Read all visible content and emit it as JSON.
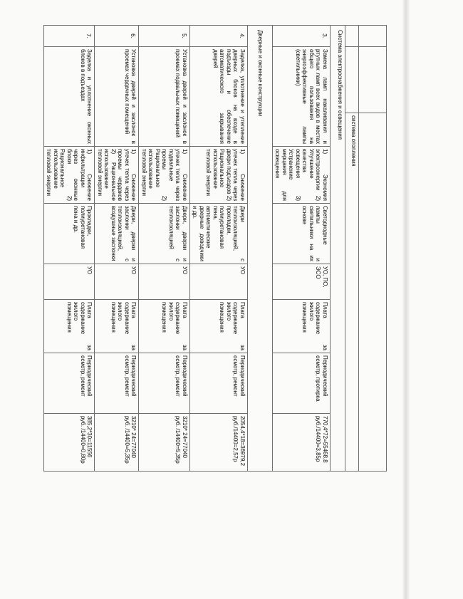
{
  "document": {
    "kind_note": "scanned table page, content rotated 90 degrees clockwise",
    "page_background": "#fafaf8",
    "grid_color": "#6e6e6e",
    "text_color": "#2f2f2f"
  },
  "table": {
    "section_heating": "система отопления",
    "section_electric": "Система электроснабжения и освещения",
    "section_doors": "Дверные и оконные конструкции",
    "rows": [
      {
        "num": "3.",
        "measure": "Замена ламп накаливания и ртутных ламп всех видов в местах общего пользования на энергоэффективные лампы (светильники)",
        "goal": "1) Экономия электроэнергии 2) Улучшение качества освещения 3) Устранение мерцания для освещения",
        "equipment": "Светодиодные лампы и светильники на их основе",
        "executor": "УО, ПО, ЭСО",
        "funding": "Плата за содержание жилого помещения",
        "service": "Периодический осмотр, протирка",
        "cost": "770,4*72=55468,8 руб./14400=3,85р"
      },
      {
        "num": "4.",
        "measure": "Заделка, уплотнение и утепление дверных блоков на входе в подъезды и обеспечение автоматического закрывания дверей",
        "goal": "1) Снижение утечек тепла через двери подъездов 2) Рациональное использование тепловой энергии",
        "equipment": "Двери с теплоизоляцией, прокладки, полиуретановая пена, автоматические дверные доводчики и др.",
        "executor": "УО",
        "funding": "Плата за содержание жилого помещения",
        "service": "Периодический осмотр, ремонт",
        "cost": "2054,4*18=36979,2 руб./14400=2,57р"
      },
      {
        "num": "5.",
        "measure": "Установка дверей и заслонок в проемах подвальных помещений",
        "goal": "1) Снижение утечек тепла через подвальные проемы 2) Рациональное использование тепловой энергии",
        "equipment": "Двери, дверки и заслонки с теплоизоляцией",
        "executor": "УО",
        "funding": "Плата за содержание жилого помещения",
        "service": "Периодический осмотр, ремонт",
        "cost": "3210* 24=77040 руб. /14400=5,35р"
      },
      {
        "num": "6.",
        "measure": "Установка дверей и заслонок в проемах чердачных помещений",
        "goal": "1) Снижение утечек тепла через проемы чердаков 2) Рациональное использование тепловой энергии",
        "equipment": "Двери, дверки и заслонки с теплоизоляцией, воздушные заслонки",
        "executor": "УО",
        "funding": "Плата за содержание жилого помещения",
        "service": "Периодический осмотр, ремонт",
        "cost": "3210* 24=77040 руб. /14400=5,35р"
      },
      {
        "num": "7.",
        "measure": "Заделка и уплотнение оконных блоков в подъездах",
        "goal": "1) Снижение инфильтрации через оконные блоки 2) Рациональное использование тепловой энергии",
        "equipment": "Прокладки, полиуретановая пена и др.",
        "executor": "УО",
        "funding": "Плата за содержание жилого помещения",
        "service": "Периодический осмотр, ремонт",
        "cost": "385,2*30=11556 руб. /14400=0,80р"
      }
    ]
  }
}
